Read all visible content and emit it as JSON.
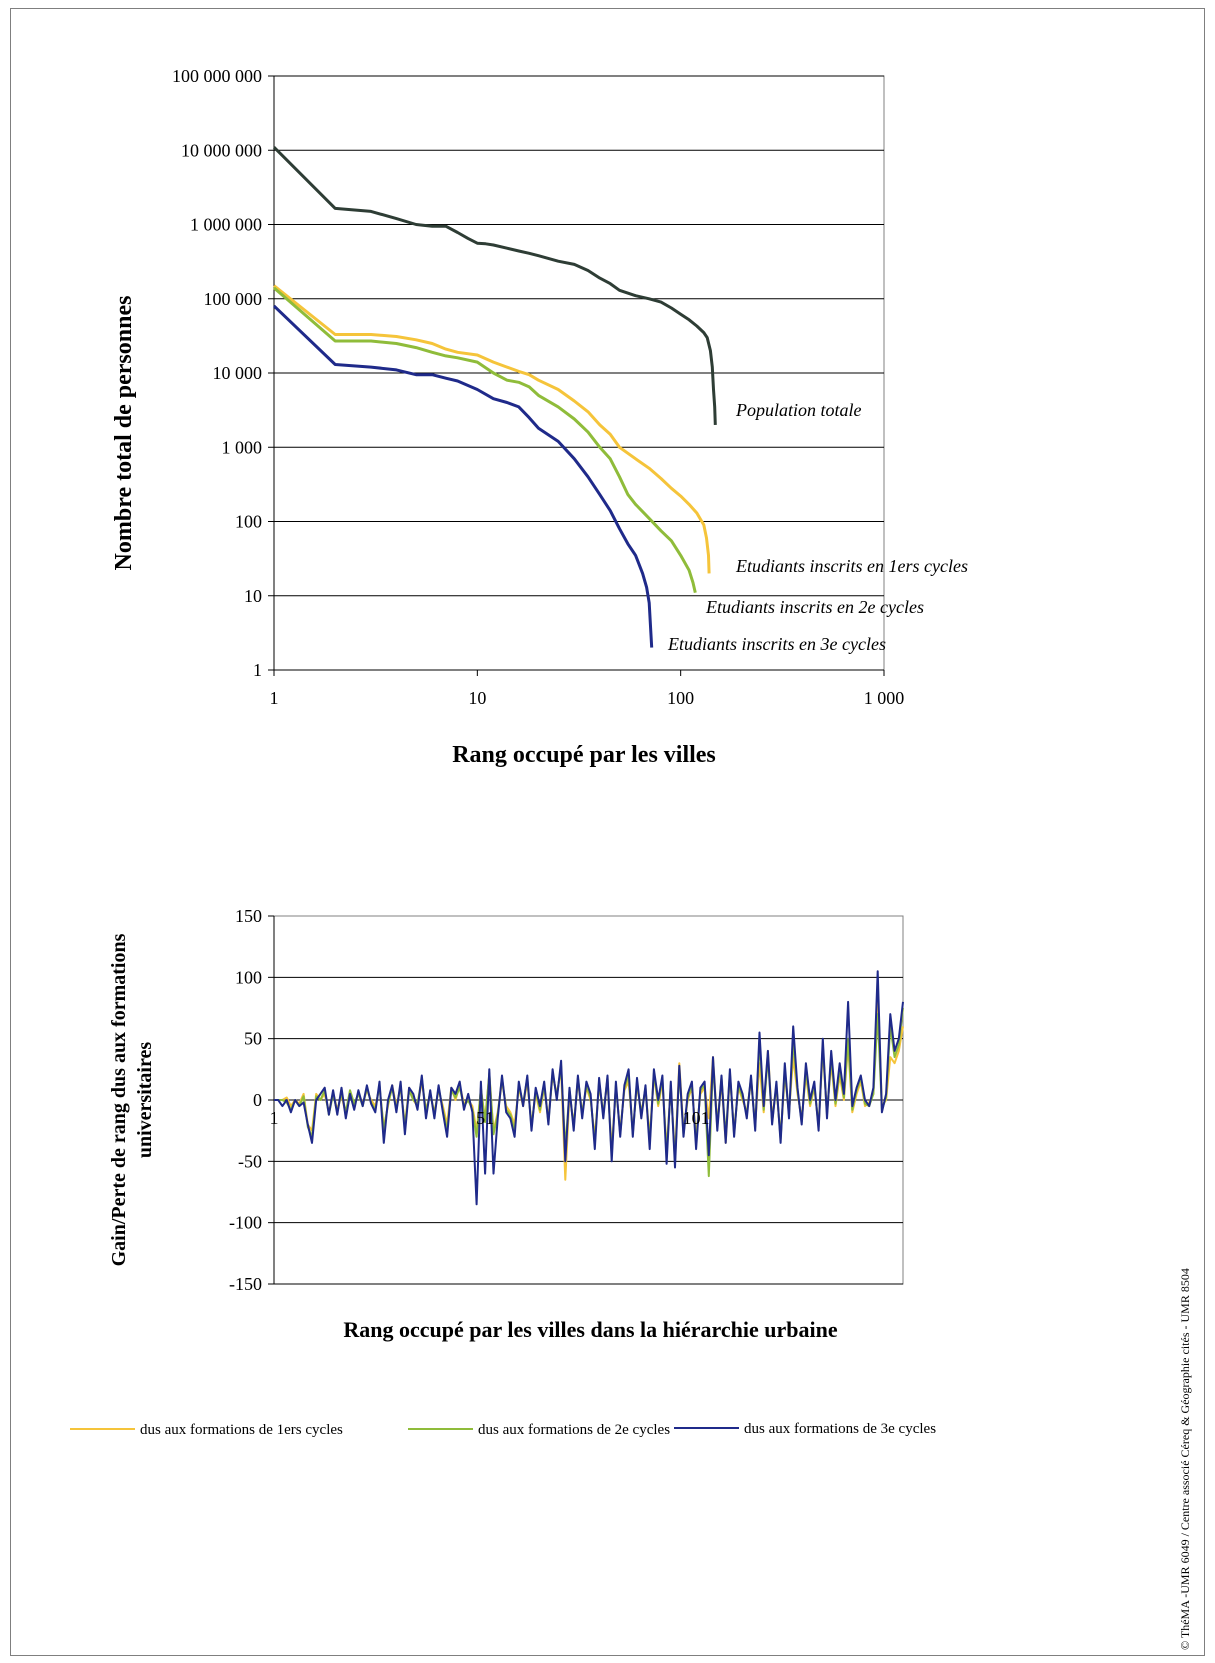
{
  "credit": "© ThéMA -UMR 6049 / Centre associé Céreq & Géographie cités - UMR 8504",
  "chart_data": [
    {
      "type": "line",
      "xscale": "log",
      "yscale": "log",
      "xlabel": "Rang occupé par les villes",
      "ylabel": "Nombre total de personnes",
      "xlim": [
        1,
        1000
      ],
      "ylim": [
        1,
        100000000
      ],
      "x_ticks": [
        {
          "v": 1,
          "label": "1"
        },
        {
          "v": 10,
          "label": "10"
        },
        {
          "v": 100,
          "label": "100"
        },
        {
          "v": 1000,
          "label": "1 000"
        }
      ],
      "y_ticks": [
        {
          "v": 1,
          "label": "1"
        },
        {
          "v": 10,
          "label": "10"
        },
        {
          "v": 100,
          "label": "100"
        },
        {
          "v": 1000,
          "label": "1 000"
        },
        {
          "v": 10000,
          "label": "10 000"
        },
        {
          "v": 100000,
          "label": "100 000"
        },
        {
          "v": 1000000,
          "label": "1 000 000"
        },
        {
          "v": 10000000,
          "label": "10 000 000"
        },
        {
          "v": 100000000,
          "label": "100 000 000"
        }
      ],
      "grid": "horizontal",
      "series": [
        {
          "name": "Population totale",
          "color": "#2e3d35",
          "points": [
            [
              1,
              11000000
            ],
            [
              2,
              1650000
            ],
            [
              3,
              1500000
            ],
            [
              4,
              1200000
            ],
            [
              5,
              1000000
            ],
            [
              6,
              950000
            ],
            [
              7,
              950000
            ],
            [
              8,
              780000
            ],
            [
              9,
              650000
            ],
            [
              10,
              560000
            ],
            [
              11,
              550000
            ],
            [
              12,
              530000
            ],
            [
              14,
              480000
            ],
            [
              16,
              440000
            ],
            [
              18,
              410000
            ],
            [
              20,
              380000
            ],
            [
              25,
              320000
            ],
            [
              30,
              290000
            ],
            [
              35,
              240000
            ],
            [
              40,
              190000
            ],
            [
              45,
              160000
            ],
            [
              50,
              130000
            ],
            [
              60,
              110000
            ],
            [
              70,
              100000
            ],
            [
              80,
              90000
            ],
            [
              90,
              75000
            ],
            [
              100,
              62000
            ],
            [
              110,
              52000
            ],
            [
              120,
              43000
            ],
            [
              130,
              35000
            ],
            [
              135,
              30000
            ],
            [
              140,
              20000
            ],
            [
              143,
              12000
            ],
            [
              145,
              6000
            ],
            [
              147,
              3500
            ],
            [
              148,
              2000
            ]
          ]
        },
        {
          "name": "Etudiants inscrits en 1ers cycles",
          "color": "#f5c43a",
          "points": [
            [
              1,
              150000
            ],
            [
              2,
              33000
            ],
            [
              3,
              33000
            ],
            [
              4,
              31000
            ],
            [
              5,
              28000
            ],
            [
              6,
              25000
            ],
            [
              7,
              21000
            ],
            [
              8,
              19000
            ],
            [
              10,
              17500
            ],
            [
              12,
              14000
            ],
            [
              14,
              12000
            ],
            [
              16,
              10500
            ],
            [
              18,
              9500
            ],
            [
              20,
              8000
            ],
            [
              25,
              6000
            ],
            [
              30,
              4200
            ],
            [
              35,
              3000
            ],
            [
              40,
              2000
            ],
            [
              45,
              1500
            ],
            [
              50,
              1000
            ],
            [
              60,
              700
            ],
            [
              70,
              520
            ],
            [
              80,
              380
            ],
            [
              90,
              280
            ],
            [
              100,
              220
            ],
            [
              110,
              170
            ],
            [
              120,
              130
            ],
            [
              130,
              90
            ],
            [
              134,
              60
            ],
            [
              137,
              35
            ],
            [
              138,
              20
            ]
          ]
        },
        {
          "name": "Etudiants inscrits en 2e cycles",
          "color": "#8fbc3a",
          "points": [
            [
              1,
              140000
            ],
            [
              2,
              27000
            ],
            [
              3,
              27000
            ],
            [
              4,
              25000
            ],
            [
              5,
              22000
            ],
            [
              6,
              19000
            ],
            [
              7,
              17000
            ],
            [
              8,
              16000
            ],
            [
              10,
              14000
            ],
            [
              12,
              10000
            ],
            [
              14,
              8000
            ],
            [
              16,
              7500
            ],
            [
              18,
              6500
            ],
            [
              20,
              5000
            ],
            [
              25,
              3500
            ],
            [
              30,
              2400
            ],
            [
              35,
              1600
            ],
            [
              40,
              1000
            ],
            [
              45,
              700
            ],
            [
              50,
              400
            ],
            [
              55,
              230
            ],
            [
              60,
              170
            ],
            [
              70,
              110
            ],
            [
              80,
              75
            ],
            [
              90,
              55
            ],
            [
              100,
              35
            ],
            [
              110,
              22
            ],
            [
              115,
              15
            ],
            [
              118,
              11
            ]
          ]
        },
        {
          "name": "Etudiants inscrits en 3e cycles",
          "color": "#1f2a8a",
          "points": [
            [
              1,
              80000
            ],
            [
              2,
              13000
            ],
            [
              3,
              12000
            ],
            [
              4,
              11000
            ],
            [
              5,
              9500
            ],
            [
              6,
              9500
            ],
            [
              7,
              8500
            ],
            [
              8,
              7800
            ],
            [
              10,
              6000
            ],
            [
              12,
              4500
            ],
            [
              14,
              4000
            ],
            [
              16,
              3500
            ],
            [
              18,
              2500
            ],
            [
              20,
              1800
            ],
            [
              25,
              1200
            ],
            [
              30,
              700
            ],
            [
              35,
              400
            ],
            [
              40,
              230
            ],
            [
              45,
              140
            ],
            [
              50,
              80
            ],
            [
              55,
              50
            ],
            [
              60,
              35
            ],
            [
              65,
              20
            ],
            [
              68,
              13
            ],
            [
              70,
              8
            ],
            [
              72,
              2
            ]
          ]
        }
      ],
      "annotations": [
        {
          "text": "Population totale",
          "series": 0
        },
        {
          "text": "Etudiants inscrits en 1ers cycles",
          "series": 1
        },
        {
          "text": "Etudiants inscrits en 2e cycles",
          "series": 2
        },
        {
          "text": "Etudiants inscrits en 3e cycles",
          "series": 3
        }
      ]
    },
    {
      "type": "line",
      "xlabel": "Rang occupé par les villes dans la hiérarchie urbaine",
      "ylabel": "Gain/Perte de rang dus aux formations universitaires",
      "xlim": [
        1,
        148
      ],
      "ylim": [
        -150,
        150
      ],
      "x_tick_labels": [
        {
          "v": 1,
          "label": "1"
        },
        {
          "v": 51,
          "label": "51"
        },
        {
          "v": 101,
          "label": "101"
        }
      ],
      "y_ticks": [
        {
          "v": 150,
          "label": "150"
        },
        {
          "v": 100,
          "label": "100"
        },
        {
          "v": 50,
          "label": "50"
        },
        {
          "v": 0,
          "label": "0"
        },
        {
          "v": -50,
          "label": "-50"
        },
        {
          "v": -100,
          "label": "-100"
        },
        {
          "v": -150,
          "label": "-150"
        }
      ],
      "grid": "horizontal",
      "legend_position": "bottom",
      "series": [
        {
          "name": "dus aux formations de 1ers cycles",
          "color": "#f5c43a",
          "values": [
            0,
            0,
            0,
            2,
            -5,
            0,
            -3,
            5,
            -20,
            -25,
            5,
            0,
            5,
            -10,
            6,
            -8,
            4,
            -12,
            5,
            -5,
            6,
            -3,
            8,
            0,
            -5,
            10,
            -22,
            -5,
            12,
            -5,
            10,
            -20,
            10,
            0,
            -5,
            15,
            -8,
            5,
            -10,
            8,
            -5,
            -20,
            10,
            0,
            12,
            -3,
            0,
            -5,
            -25,
            8,
            -15,
            20,
            -25,
            -10,
            15,
            -5,
            -10,
            -20,
            10,
            -5,
            15,
            -20,
            5,
            -10,
            10,
            -15,
            20,
            5,
            25,
            -65,
            5,
            -20,
            15,
            -10,
            10,
            0,
            -30,
            12,
            -10,
            15,
            -40,
            10,
            -25,
            8,
            15,
            -25,
            12,
            -10,
            8,
            -30,
            20,
            -5,
            15,
            -40,
            10,
            -45,
            30,
            -25,
            0,
            10,
            -30,
            5,
            10,
            -15,
            35,
            -20,
            15,
            -35,
            20,
            -25,
            10,
            0,
            -10,
            15,
            -20,
            30,
            -10,
            40,
            -15,
            10,
            -30,
            20,
            -10,
            35,
            5,
            -15,
            20,
            -5,
            10,
            -20,
            40,
            -10,
            30,
            -5,
            20,
            0,
            45,
            -10,
            5,
            15,
            -5,
            -2,
            5,
            90,
            -5,
            0,
            35,
            30,
            40,
            60
          ]
        },
        {
          "name": "dus aux formations de 2e cycles",
          "color": "#8fbc3a",
          "values": [
            0,
            0,
            0,
            -2,
            -8,
            0,
            -5,
            3,
            -22,
            -30,
            3,
            0,
            8,
            -12,
            5,
            -10,
            6,
            -10,
            8,
            -3,
            5,
            -5,
            10,
            -2,
            -8,
            12,
            -25,
            -3,
            10,
            -8,
            12,
            -22,
            8,
            0,
            -3,
            18,
            -10,
            6,
            -12,
            10,
            -8,
            -25,
            8,
            2,
            10,
            -5,
            0,
            -8,
            -30,
            10,
            -18,
            22,
            -28,
            -12,
            18,
            -8,
            -12,
            -25,
            12,
            -3,
            18,
            -22,
            8,
            -8,
            12,
            -18,
            22,
            3,
            28,
            -40,
            8,
            -22,
            18,
            -12,
            12,
            2,
            -35,
            15,
            -12,
            18,
            -45,
            12,
            -28,
            10,
            20,
            -28,
            15,
            -12,
            10,
            -35,
            22,
            -3,
            18,
            -45,
            12,
            -50,
            25,
            -28,
            2,
            12,
            -35,
            8,
            12,
            -62,
            30,
            -22,
            18,
            -30,
            22,
            -28,
            12,
            2,
            -12,
            18,
            -22,
            48,
            -8,
            35,
            -18,
            12,
            -32,
            25,
            -12,
            48,
            8,
            -18,
            25,
            -3,
            12,
            -22,
            45,
            -12,
            35,
            -3,
            25,
            2,
            50,
            -8,
            8,
            18,
            -3,
            -5,
            5,
            70,
            -8,
            2,
            60,
            35,
            45,
            75
          ]
        },
        {
          "name": "dus aux formations de 3e cycles",
          "color": "#1f2a8a",
          "values": [
            0,
            0,
            -5,
            0,
            -10,
            0,
            -5,
            -2,
            -20,
            -35,
            0,
            5,
            10,
            -12,
            8,
            -12,
            10,
            -15,
            5,
            -8,
            8,
            -5,
            12,
            -3,
            -10,
            15,
            -35,
            0,
            12,
            -10,
            15,
            -28,
            10,
            5,
            -8,
            20,
            -15,
            8,
            -15,
            12,
            -10,
            -30,
            10,
            5,
            15,
            -8,
            5,
            -10,
            -85,
            15,
            -60,
            25,
            -60,
            -15,
            20,
            -10,
            -15,
            -30,
            15,
            -5,
            20,
            -25,
            10,
            -5,
            15,
            -20,
            25,
            0,
            32,
            -50,
            10,
            -25,
            20,
            -15,
            15,
            5,
            -40,
            18,
            -15,
            20,
            -50,
            15,
            -30,
            12,
            25,
            -30,
            18,
            -15,
            12,
            -40,
            25,
            0,
            20,
            -52,
            15,
            -55,
            28,
            -30,
            5,
            15,
            -40,
            10,
            15,
            -45,
            35,
            -25,
            20,
            -35,
            25,
            -30,
            15,
            5,
            -15,
            20,
            -25,
            55,
            -5,
            40,
            -20,
            15,
            -35,
            30,
            -15,
            60,
            10,
            -20,
            30,
            0,
            15,
            -25,
            50,
            -15,
            40,
            0,
            30,
            5,
            80,
            -5,
            10,
            20,
            0,
            -5,
            10,
            105,
            -10,
            5,
            70,
            40,
            50,
            80
          ]
        }
      ]
    }
  ]
}
